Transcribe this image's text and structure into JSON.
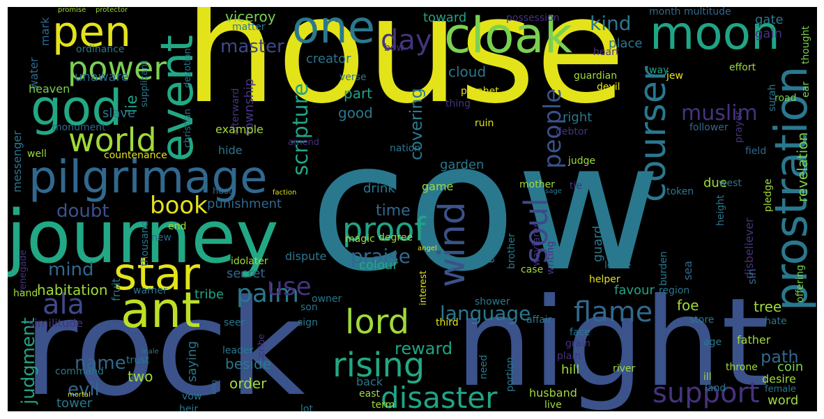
{
  "palette": {
    "yellow": "#e3e31a",
    "lime": "#a0da39",
    "green": "#4ac16d",
    "teal": "#1fa187",
    "cyan": "#277f8e",
    "blue": "#365c8d",
    "indigo": "#46337e",
    "purple": "#440154"
  },
  "words": {
    "house": "house",
    "cow": "cow",
    "rock": "rock",
    "night": "night",
    "journey": "journey",
    "pilgrimage": "pilgrimage",
    "cloak": "cloak",
    "moon": "moon",
    "pen": "pen",
    "one": "one",
    "prostration": "prostration",
    "event": "event",
    "god": "god",
    "power": "power",
    "world": "world",
    "courser": "courser",
    "star": "star",
    "ant": "ant",
    "ala": "ala",
    "wind": "wind",
    "soul": "soul",
    "proof": "proof",
    "lord": "lord",
    "rising": "rising",
    "disaster": "disaster",
    "support": "support",
    "flame": "flame",
    "day": "day",
    "kind": "kind",
    "master": "master",
    "book": "book",
    "people": "people",
    "scripture": "scripture",
    "muslim": "muslim",
    "language": "language",
    "praise": "praise",
    "palm": "palm",
    "use": "use",
    "mind": "mind",
    "doubt": "doubt",
    "judgment": "judgment",
    "habitation": "habitation",
    "reward": "reward",
    "path": "path",
    "name": "name",
    "evil": "evil",
    "time": "time",
    "covering": "covering",
    "lie": "lie",
    "revelation": "revelation",
    "toward": "toward",
    "possession": "possession",
    "viceroy": "viceroy",
    "creator": "creator",
    "gate": "gate",
    "gain": "gain",
    "place": "place",
    "month": "month",
    "multitude": "multitude",
    "thought": "thought",
    "ear": "ear",
    "effort": "effort",
    "way": "way",
    "heart": "heart",
    "cloud": "cloud",
    "verse": "verse",
    "guardian": "guardian",
    "jew": "jew",
    "prophet": "prophet",
    "devil": "devil",
    "surah": "surah",
    "road": "road",
    "thing": "thing",
    "ruin": "ruin",
    "debtor": "debtor",
    "follower": "follower",
    "prayer": "prayer",
    "field": "field",
    "good": "good",
    "part": "part",
    "right": "right",
    "water": "water",
    "mark": "mark",
    "unaware": "unaware",
    "heaven": "heaven",
    "ordinance": "ordinance",
    "matter": "matter",
    "supplicant": "supplicant",
    "christian": "christian",
    "devotion": "devotion",
    "afterward": "afterward",
    "township": "township",
    "slave": "slave",
    "messenger": "messenger",
    "monument": "monument",
    "countenance": "countenance",
    "well": "well",
    "example": "example",
    "hide": "hide",
    "amend": "amend",
    "nation": "nation",
    "judge": "judge",
    "garden": "garden",
    "due": "due",
    "pledge": "pledge",
    "west": "west",
    "height": "height",
    "tie": "tie",
    "token": "token",
    "message": "message",
    "mother": "mother",
    "head": "head",
    "drink": "drink",
    "game": "game",
    "punishment": "punishment",
    "faction": "faction",
    "host": "host",
    "disbeliever": "disbeliever",
    "sin": "sin",
    "sea": "sea",
    "offering": "offering",
    "turn": "turn",
    "guard": "guard",
    "brother": "brother",
    "wayfarer": "wayfarer",
    "writing": "writing",
    "case": "case",
    "leave": "leave",
    "burden": "burden",
    "region": "region",
    "degree": "degree",
    "magic": "magic",
    "angel": "angel",
    "interest": "interest",
    "colour": "colour",
    "secret": "secret",
    "dispute": "dispute",
    "idolater": "idolater",
    "thousand": "thousand",
    "end": "end",
    "new": "new",
    "fruit": "fruit",
    "warner": "warner",
    "tribe": "tribe",
    "helper": "helper",
    "favour": "favour",
    "foe": "foe",
    "tree": "tree",
    "hate": "hate",
    "store": "store",
    "age": "age",
    "father": "father",
    "coin": "coin",
    "desire": "desire",
    "word": "word",
    "female": "female",
    "renegade": "renegade",
    "hand": "hand",
    "similitude": "similitude",
    "son": "son",
    "owner": "owner",
    "sign": "sign",
    "third": "third",
    "shower": "shower",
    "affair": "affair",
    "face": "face",
    "grain": "grain",
    "plain": "plain",
    "hill": "hill",
    "river": "river",
    "throne": "throne",
    "ill": "ill",
    "land": "land",
    "seer": "seer",
    "scribe": "scribe",
    "saying": "saying",
    "beside": "beside",
    "order": "order",
    "back": "back",
    "east": "east",
    "term": "term",
    "husband": "husband",
    "live": "live",
    "two": "two",
    "trust": "trust",
    "male": "male",
    "king": "king",
    "leader": "leader",
    "command": "command",
    "tower": "tower",
    "mortal": "mortal",
    "vow": "vow",
    "heir": "heir",
    "lot": "lot",
    "need": "need",
    "portion": "portion",
    "promise": "promise",
    "protector": "protector",
    "bow": "bow"
  }
}
